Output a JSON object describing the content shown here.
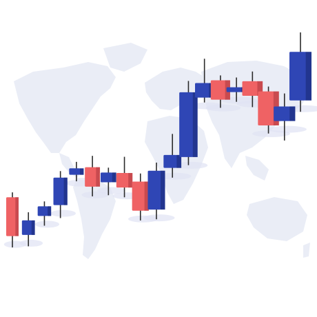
{
  "colors": {
    "bullish": "#2f46b5",
    "bullish_side": "#22358f",
    "bearish": "#ef6264",
    "bearish_side": "#c94a4f",
    "wick": "#2a2a2a",
    "map": "#eaedf6",
    "shadow": "#dfe3f4"
  },
  "background_icon": "world-map-icon",
  "chart_data": {
    "type": "candlestick",
    "title": "",
    "xlabel": "",
    "ylabel": "",
    "grid": false,
    "ylim": [
      0,
      100
    ],
    "candles": [
      {
        "direction": "down",
        "open": 28,
        "close": 4,
        "high": 31,
        "low": -3
      },
      {
        "direction": "up",
        "open": 4,
        "close": 13,
        "high": 18,
        "low": -3
      },
      {
        "direction": "up",
        "open": 15,
        "close": 21,
        "high": 24,
        "low": 9
      },
      {
        "direction": "up",
        "open": 21,
        "close": 38,
        "high": 42,
        "low": 13
      },
      {
        "direction": "up",
        "open": 39,
        "close": 43,
        "high": 47,
        "low": 35
      },
      {
        "direction": "down",
        "open": 43,
        "close": 31,
        "high": 50,
        "low": 25
      },
      {
        "direction": "up",
        "open": 33,
        "close": 39,
        "high": 42,
        "low": 25
      },
      {
        "direction": "down",
        "open": 38,
        "close": 29,
        "high": 48,
        "low": 23
      },
      {
        "direction": "down",
        "open": 32,
        "close": 14,
        "high": 37,
        "low": 8
      },
      {
        "direction": "up",
        "open": 14,
        "close": 38,
        "high": 43,
        "low": 8
      },
      {
        "direction": "up",
        "open": 39,
        "close": 47,
        "high": 60,
        "low": 33
      },
      {
        "direction": "up",
        "open": 45,
        "close": 85,
        "high": 92,
        "low": 40
      },
      {
        "direction": "up",
        "open": 81,
        "close": 90,
        "high": 105,
        "low": 78
      },
      {
        "direction": "down",
        "open": 91,
        "close": 79,
        "high": 94,
        "low": 74
      },
      {
        "direction": "up",
        "open": 83,
        "close": 86,
        "high": 92,
        "low": 77
      },
      {
        "direction": "down",
        "open": 89,
        "close": 80,
        "high": 95,
        "low": 73
      },
      {
        "direction": "down",
        "open": 82,
        "close": 61,
        "high": 85,
        "low": 56
      },
      {
        "direction": "up",
        "open": 63,
        "close": 72,
        "high": 80,
        "low": 51
      },
      {
        "direction": "up",
        "open": 75,
        "close": 105,
        "high": 117,
        "low": 68
      }
    ]
  }
}
